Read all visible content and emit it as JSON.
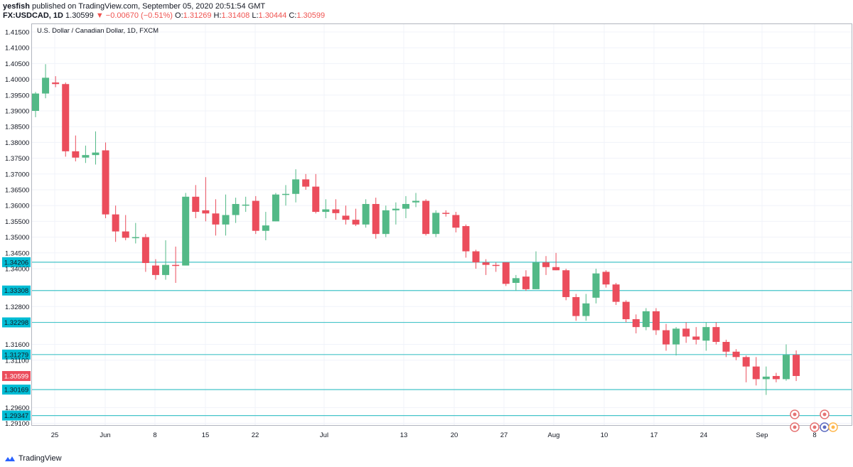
{
  "header": {
    "line1_user": "yesfish",
    "line1_rest": " published on TradingView.com, September 05, 2020 20:51:54 GMT",
    "symbol": "FX:USDCAD, 1D",
    "last": "1.30599",
    "change": "▼ −0.00670 (−0.51%)",
    "o_label": "O:",
    "o_value": "1.31269",
    "h_label": "H:",
    "h_value": "1.31408",
    "l_label": "L:",
    "l_value": "1.30444",
    "c_label": "C:",
    "c_value": "1.30599"
  },
  "footer": {
    "brand": "TradingView"
  },
  "colors": {
    "up": "#53b987",
    "down": "#eb4d5c",
    "level_line": "#45c4c9",
    "level_tag": "#00bcd4",
    "last_tag": "#eb4d5c",
    "grid": "#f0f3fa"
  },
  "chart_data": {
    "type": "candlestick",
    "title": "U.S. Dollar / Canadian Dollar, 1D, FXCM",
    "y_ticks": [
      "1.41500",
      "1.41000",
      "1.40500",
      "1.40000",
      "1.39500",
      "1.39000",
      "1.38500",
      "1.38000",
      "1.37500",
      "1.37000",
      "1.36500",
      "1.36000",
      "1.35500",
      "1.35000",
      "1.34500",
      "1.34000",
      "1.32800",
      "1.31600",
      "1.31100",
      "1.29600",
      "1.29100"
    ],
    "x_ticks": [
      "25",
      "Jun",
      "8",
      "15",
      "22",
      "Jul",
      "13",
      "20",
      "27",
      "Aug",
      "10",
      "17",
      "24",
      "Sep",
      "8"
    ],
    "levels": [
      "1.34206",
      "1.33308",
      "1.32298",
      "1.31279",
      "1.30169",
      "1.29347"
    ],
    "last_price": "1.30599",
    "candles": [
      {
        "o": 1.39,
        "h": 1.396,
        "l": 1.388,
        "c": 1.3955
      },
      {
        "o": 1.3955,
        "h": 1.4048,
        "l": 1.394,
        "c": 1.4005
      },
      {
        "o": 1.399,
        "h": 1.401,
        "l": 1.3975,
        "c": 1.3985
      },
      {
        "o": 1.3985,
        "h": 1.399,
        "l": 1.3755,
        "c": 1.3772
      },
      {
        "o": 1.3772,
        "h": 1.3822,
        "l": 1.374,
        "c": 1.3752
      },
      {
        "o": 1.3752,
        "h": 1.379,
        "l": 1.3735,
        "c": 1.376
      },
      {
        "o": 1.376,
        "h": 1.3835,
        "l": 1.373,
        "c": 1.3768
      },
      {
        "o": 1.3775,
        "h": 1.38,
        "l": 1.356,
        "c": 1.3572
      },
      {
        "o": 1.3572,
        "h": 1.36,
        "l": 1.3485,
        "c": 1.3518
      },
      {
        "o": 1.3518,
        "h": 1.357,
        "l": 1.349,
        "c": 1.3498
      },
      {
        "o": 1.3498,
        "h": 1.3545,
        "l": 1.348,
        "c": 1.35
      },
      {
        "o": 1.35,
        "h": 1.351,
        "l": 1.339,
        "c": 1.3418
      },
      {
        "o": 1.341,
        "h": 1.343,
        "l": 1.3365,
        "c": 1.338
      },
      {
        "o": 1.338,
        "h": 1.349,
        "l": 1.3365,
        "c": 1.3412
      },
      {
        "o": 1.3412,
        "h": 1.347,
        "l": 1.3355,
        "c": 1.341
      },
      {
        "o": 1.341,
        "h": 1.364,
        "l": 1.341,
        "c": 1.3628
      },
      {
        "o": 1.3628,
        "h": 1.3665,
        "l": 1.356,
        "c": 1.358
      },
      {
        "o": 1.3585,
        "h": 1.369,
        "l": 1.355,
        "c": 1.3575
      },
      {
        "o": 1.3575,
        "h": 1.362,
        "l": 1.3505,
        "c": 1.354
      },
      {
        "o": 1.354,
        "h": 1.3635,
        "l": 1.3505,
        "c": 1.357
      },
      {
        "o": 1.357,
        "h": 1.3625,
        "l": 1.3545,
        "c": 1.3605
      },
      {
        "o": 1.36,
        "h": 1.3628,
        "l": 1.358,
        "c": 1.3603
      },
      {
        "o": 1.3615,
        "h": 1.363,
        "l": 1.351,
        "c": 1.352
      },
      {
        "o": 1.352,
        "h": 1.358,
        "l": 1.349,
        "c": 1.3537
      },
      {
        "o": 1.355,
        "h": 1.364,
        "l": 1.355,
        "c": 1.3635
      },
      {
        "o": 1.3635,
        "h": 1.3665,
        "l": 1.36,
        "c": 1.3637
      },
      {
        "o": 1.3637,
        "h": 1.3715,
        "l": 1.361,
        "c": 1.3683
      },
      {
        "o": 1.3683,
        "h": 1.37,
        "l": 1.365,
        "c": 1.366
      },
      {
        "o": 1.366,
        "h": 1.37,
        "l": 1.3575,
        "c": 1.358
      },
      {
        "o": 1.358,
        "h": 1.362,
        "l": 1.356,
        "c": 1.3588
      },
      {
        "o": 1.3588,
        "h": 1.362,
        "l": 1.3555,
        "c": 1.3576
      },
      {
        "o": 1.3568,
        "h": 1.36,
        "l": 1.354,
        "c": 1.3555
      },
      {
        "o": 1.3555,
        "h": 1.359,
        "l": 1.3535,
        "c": 1.354
      },
      {
        "o": 1.354,
        "h": 1.362,
        "l": 1.353,
        "c": 1.3605
      },
      {
        "o": 1.3605,
        "h": 1.3625,
        "l": 1.3495,
        "c": 1.351
      },
      {
        "o": 1.351,
        "h": 1.36,
        "l": 1.35,
        "c": 1.3585
      },
      {
        "o": 1.3585,
        "h": 1.361,
        "l": 1.354,
        "c": 1.359
      },
      {
        "o": 1.359,
        "h": 1.363,
        "l": 1.356,
        "c": 1.3605
      },
      {
        "o": 1.361,
        "h": 1.364,
        "l": 1.3595,
        "c": 1.3615
      },
      {
        "o": 1.3615,
        "h": 1.362,
        "l": 1.3505,
        "c": 1.351
      },
      {
        "o": 1.351,
        "h": 1.3585,
        "l": 1.35,
        "c": 1.3577
      },
      {
        "o": 1.3577,
        "h": 1.3585,
        "l": 1.3565,
        "c": 1.3575
      },
      {
        "o": 1.357,
        "h": 1.358,
        "l": 1.3515,
        "c": 1.353
      },
      {
        "o": 1.3535,
        "h": 1.354,
        "l": 1.3435,
        "c": 1.3455
      },
      {
        "o": 1.3455,
        "h": 1.346,
        "l": 1.34,
        "c": 1.342
      },
      {
        "o": 1.342,
        "h": 1.343,
        "l": 1.338,
        "c": 1.3412
      },
      {
        "o": 1.3412,
        "h": 1.342,
        "l": 1.339,
        "c": 1.341
      },
      {
        "o": 1.342,
        "h": 1.342,
        "l": 1.3345,
        "c": 1.3352
      },
      {
        "o": 1.3355,
        "h": 1.338,
        "l": 1.333,
        "c": 1.337
      },
      {
        "o": 1.3375,
        "h": 1.3395,
        "l": 1.333,
        "c": 1.3335
      },
      {
        "o": 1.3335,
        "h": 1.3455,
        "l": 1.3335,
        "c": 1.342
      },
      {
        "o": 1.342,
        "h": 1.344,
        "l": 1.338,
        "c": 1.3405
      },
      {
        "o": 1.3405,
        "h": 1.345,
        "l": 1.3395,
        "c": 1.3395
      },
      {
        "o": 1.3395,
        "h": 1.34,
        "l": 1.33,
        "c": 1.331
      },
      {
        "o": 1.331,
        "h": 1.332,
        "l": 1.3235,
        "c": 1.325
      },
      {
        "o": 1.325,
        "h": 1.332,
        "l": 1.3235,
        "c": 1.329
      },
      {
        "o": 1.3308,
        "h": 1.34,
        "l": 1.329,
        "c": 1.3385
      },
      {
        "o": 1.339,
        "h": 1.3395,
        "l": 1.334,
        "c": 1.335
      },
      {
        "o": 1.335,
        "h": 1.3355,
        "l": 1.3285,
        "c": 1.3295
      },
      {
        "o": 1.3295,
        "h": 1.33,
        "l": 1.323,
        "c": 1.324
      },
      {
        "o": 1.324,
        "h": 1.3255,
        "l": 1.3195,
        "c": 1.3215
      },
      {
        "o": 1.3215,
        "h": 1.3275,
        "l": 1.3205,
        "c": 1.3265
      },
      {
        "o": 1.3265,
        "h": 1.3275,
        "l": 1.319,
        "c": 1.3205
      },
      {
        "o": 1.3205,
        "h": 1.3225,
        "l": 1.314,
        "c": 1.316
      },
      {
        "o": 1.316,
        "h": 1.3215,
        "l": 1.3125,
        "c": 1.321
      },
      {
        "o": 1.321,
        "h": 1.323,
        "l": 1.3165,
        "c": 1.3185
      },
      {
        "o": 1.3185,
        "h": 1.3215,
        "l": 1.316,
        "c": 1.3175
      },
      {
        "o": 1.3172,
        "h": 1.323,
        "l": 1.314,
        "c": 1.3215
      },
      {
        "o": 1.3215,
        "h": 1.323,
        "l": 1.316,
        "c": 1.3168
      },
      {
        "o": 1.3168,
        "h": 1.3175,
        "l": 1.312,
        "c": 1.3137
      },
      {
        "o": 1.3137,
        "h": 1.3145,
        "l": 1.311,
        "c": 1.312
      },
      {
        "o": 1.312,
        "h": 1.3125,
        "l": 1.304,
        "c": 1.309
      },
      {
        "o": 1.309,
        "h": 1.312,
        "l": 1.303,
        "c": 1.305
      },
      {
        "o": 1.305,
        "h": 1.309,
        "l": 1.3,
        "c": 1.3058
      },
      {
        "o": 1.306,
        "h": 1.307,
        "l": 1.304,
        "c": 1.305
      },
      {
        "o": 1.305,
        "h": 1.316,
        "l": 1.3045,
        "c": 1.3127
      },
      {
        "o": 1.3127,
        "h": 1.3141,
        "l": 1.3044,
        "c": 1.306
      }
    ]
  }
}
